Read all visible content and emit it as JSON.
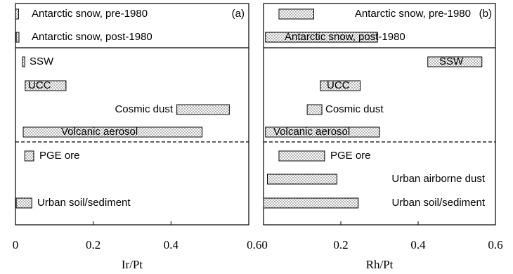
{
  "chart_data": [
    {
      "type": "range-bar",
      "panel_label": "(a)",
      "xlabel": "Ir/Pt",
      "xlim": [
        0,
        0.6
      ],
      "xticks": [
        0,
        0.2,
        0.4,
        {
          "value": 0.6,
          "label": "0.60"
        }
      ],
      "categories": [
        "Antarctic snow, pre-1980",
        "Antarctic snow, post-1980",
        "SSW",
        "UCC",
        "Cosmic dust",
        "Volcanic aerosol",
        "PGE ore",
        null,
        "Urban soil/sediment"
      ],
      "low": [
        0,
        0.002,
        0.018,
        0.025,
        0.415,
        0.02,
        0.024,
        null,
        0.002
      ],
      "high": [
        0.008,
        0.009,
        0.024,
        0.13,
        0.55,
        0.48,
        0.047,
        null,
        0.042
      ]
    },
    {
      "type": "range-bar",
      "panel_label": "(b)",
      "xlabel": "Rh/Pt",
      "xlim": [
        0,
        0.6
      ],
      "xticks": [
        0.2,
        0.4,
        0.6
      ],
      "categories": [
        "Antarctic snow, pre-1980",
        "Antarctic snow, post-1980",
        "SSW",
        "UCC",
        "Cosmic dust",
        "Volcanic aerosol",
        "PGE ore",
        "Urban airborne dust",
        "Urban soil/sediment"
      ],
      "low": [
        0.04,
        0.005,
        0.425,
        0.147,
        0.113,
        0.005,
        0.04,
        0.01,
        0
      ],
      "high": [
        0.13,
        0.295,
        0.565,
        0.25,
        0.151,
        0.3,
        0.158,
        0.19,
        0.245
      ]
    }
  ]
}
